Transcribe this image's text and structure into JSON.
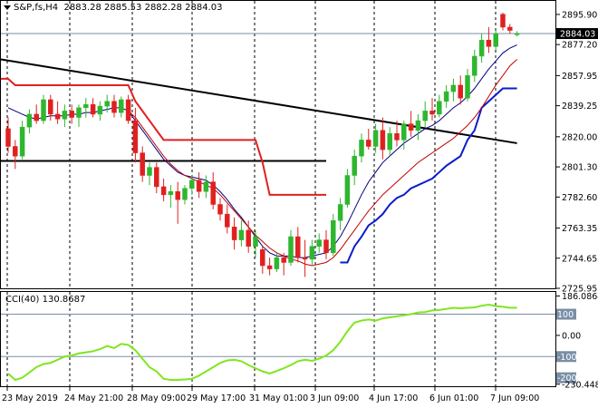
{
  "header": {
    "symbol": "S&P,fs,H4",
    "ohlc": "2883.28 2885.53 2882.28 2884.03",
    "menu_icon": "triangle-down-icon"
  },
  "subwindow": {
    "indicator_label": "CCI(40) 130.8687"
  },
  "colors": {
    "bull": "#2fb62f",
    "bear": "#e02020",
    "thin_ma": "#000080",
    "red_ma": "#c00000",
    "resistance_step": "#e02020",
    "support_step": "#0a1ccc",
    "trendline": "#000000",
    "cci": "#7fe61e",
    "price_marker_bg": "#000000"
  },
  "chart_data": [
    {
      "type": "candlestick",
      "title": "S&P,fs,H4",
      "ylim": [
        2725.95,
        2904.3
      ],
      "y_ticks": [
        "2895.90",
        "2877.20",
        "2857.95",
        "2839.25",
        "2820.00",
        "2801.30",
        "2782.60",
        "2763.35",
        "2744.65",
        "2725.95"
      ],
      "current_price": "2884.03",
      "x_tick_labels": [
        "23 May 2019",
        "24 May 21:00",
        "28 May 09:00",
        "29 May 17:00",
        "31 May 01:00",
        "3 Jun 09:00",
        "4 Jun 17:00",
        "6 Jun 01:00",
        "7 Jun 09:00"
      ],
      "candles": [
        [
          2825,
          2832,
          2810,
          2814
        ],
        [
          2814,
          2818,
          2800,
          2808
        ],
        [
          2808,
          2830,
          2806,
          2826
        ],
        [
          2826,
          2837,
          2822,
          2834
        ],
        [
          2834,
          2840,
          2828,
          2830
        ],
        [
          2830,
          2846,
          2828,
          2843
        ],
        [
          2843,
          2846,
          2830,
          2834
        ],
        [
          2834,
          2842,
          2828,
          2831
        ],
        [
          2831,
          2840,
          2826,
          2836
        ],
        [
          2836,
          2840,
          2828,
          2832
        ],
        [
          2832,
          2840,
          2826,
          2838
        ],
        [
          2838,
          2844,
          2832,
          2840
        ],
        [
          2840,
          2844,
          2832,
          2834
        ],
        [
          2834,
          2842,
          2830,
          2839
        ],
        [
          2839,
          2846,
          2835,
          2842
        ],
        [
          2842,
          2846,
          2832,
          2835
        ],
        [
          2835,
          2845,
          2832,
          2843
        ],
        [
          2843,
          2846,
          2828,
          2830
        ],
        [
          2830,
          2838,
          2804,
          2810
        ],
        [
          2810,
          2814,
          2792,
          2796
        ],
        [
          2796,
          2804,
          2790,
          2801
        ],
        [
          2801,
          2804,
          2785,
          2789
        ],
        [
          2789,
          2794,
          2780,
          2784
        ],
        [
          2784,
          2790,
          2776,
          2786
        ],
        [
          2786,
          2792,
          2766,
          2781
        ],
        [
          2781,
          2790,
          2778,
          2788
        ],
        [
          2788,
          2796,
          2784,
          2793
        ],
        [
          2793,
          2798,
          2782,
          2786
        ],
        [
          2786,
          2796,
          2782,
          2792
        ],
        [
          2792,
          2798,
          2775,
          2778
        ],
        [
          2778,
          2782,
          2768,
          2772
        ],
        [
          2772,
          2778,
          2760,
          2764
        ],
        [
          2764,
          2770,
          2750,
          2756
        ],
        [
          2756,
          2768,
          2752,
          2762
        ],
        [
          2762,
          2768,
          2748,
          2752
        ],
        [
          2752,
          2762,
          2745,
          2758
        ],
        [
          2750,
          2752,
          2735,
          2740
        ],
        [
          2740,
          2745,
          2734,
          2738
        ],
        [
          2738,
          2748,
          2736,
          2745
        ],
        [
          2745,
          2748,
          2734,
          2742
        ],
        [
          2742,
          2762,
          2740,
          2758
        ],
        [
          2758,
          2764,
          2742,
          2745
        ],
        [
          2745,
          2756,
          2733,
          2744
        ],
        [
          2744,
          2756,
          2740,
          2752
        ],
        [
          2752,
          2760,
          2748,
          2756
        ],
        [
          2756,
          2762,
          2744,
          2748
        ],
        [
          2748,
          2772,
          2746,
          2768
        ],
        [
          2768,
          2782,
          2762,
          2778
        ],
        [
          2778,
          2800,
          2776,
          2796
        ],
        [
          2796,
          2812,
          2790,
          2808
        ],
        [
          2808,
          2822,
          2804,
          2818
        ],
        [
          2818,
          2825,
          2812,
          2814
        ],
        [
          2814,
          2828,
          2810,
          2824
        ],
        [
          2824,
          2832,
          2806,
          2812
        ],
        [
          2812,
          2826,
          2808,
          2822
        ],
        [
          2822,
          2830,
          2814,
          2818
        ],
        [
          2818,
          2830,
          2812,
          2828
        ],
        [
          2828,
          2836,
          2820,
          2824
        ],
        [
          2824,
          2834,
          2818,
          2830
        ],
        [
          2830,
          2842,
          2826,
          2836
        ],
        [
          2836,
          2844,
          2830,
          2834
        ],
        [
          2834,
          2846,
          2832,
          2842
        ],
        [
          2842,
          2852,
          2838,
          2848
        ],
        [
          2848,
          2856,
          2842,
          2852
        ],
        [
          2852,
          2858,
          2840,
          2844
        ],
        [
          2844,
          2862,
          2842,
          2858
        ],
        [
          2858,
          2874,
          2854,
          2870
        ],
        [
          2870,
          2884,
          2866,
          2880
        ],
        [
          2880,
          2888,
          2872,
          2876
        ],
        [
          2876,
          2886,
          2874,
          2884
        ],
        [
          2896,
          2897,
          2886,
          2888
        ],
        [
          2888,
          2890,
          2884,
          2886
        ],
        [
          2883.28,
          2885.53,
          2882.28,
          2884.03
        ]
      ],
      "series": [
        {
          "label": "fast-ma",
          "values": [
            2838,
            2836,
            2834,
            2832,
            2831,
            2832,
            2833,
            2833,
            2833,
            2834,
            2834,
            2835,
            2835,
            2836,
            2837,
            2838,
            2838,
            2836,
            2830,
            2824,
            2818,
            2812,
            2806,
            2802,
            2798,
            2796,
            2795,
            2794,
            2793,
            2790,
            2786,
            2781,
            2775,
            2770,
            2764,
            2758,
            2752,
            2748,
            2746,
            2746,
            2746,
            2745,
            2745,
            2746,
            2747,
            2748,
            2752,
            2758,
            2766,
            2775,
            2784,
            2792,
            2798,
            2804,
            2808,
            2812,
            2816,
            2819,
            2822,
            2825,
            2827,
            2830,
            2834,
            2838,
            2841,
            2845,
            2850,
            2856,
            2862,
            2867,
            2872,
            2875,
            2877
          ]
        },
        {
          "label": "slow-ma",
          "values": [
            null,
            null,
            null,
            null,
            null,
            null,
            null,
            null,
            null,
            null,
            null,
            null,
            null,
            null,
            null,
            null,
            null,
            2836,
            2832,
            2826,
            2820,
            2814,
            2808,
            2803,
            2799,
            2796,
            2794,
            2792,
            2790,
            2788,
            2784,
            2779,
            2774,
            2769,
            2764,
            2759,
            2755,
            2751,
            2748,
            2746,
            2744,
            2743,
            2741,
            2740,
            2741,
            2742,
            2745,
            2750,
            2756,
            2762,
            2768,
            2774,
            2779,
            2784,
            2788,
            2792,
            2796,
            2800,
            2804,
            2807,
            2810,
            2813,
            2816,
            2819,
            2823,
            2827,
            2832,
            2838,
            2845,
            2852,
            2858,
            2864,
            2868
          ]
        },
        {
          "label": "resistance-step",
          "values": [
            2856,
            2852,
            2852,
            2852,
            2852,
            2852,
            2852,
            2852,
            2852,
            2852,
            2852,
            2852,
            2852,
            2852,
            2852,
            2852,
            2852,
            2852,
            2842,
            2836,
            2830,
            2824,
            2818,
            2818,
            2818,
            2818,
            2818,
            2818,
            2818,
            2818,
            2818,
            2818,
            2818,
            2818,
            2818,
            2818,
            2804,
            2784,
            2784,
            2784,
            2784,
            2784,
            2784,
            2784,
            2784,
            2784
          ]
        },
        {
          "label": "support-step",
          "values": [
            null,
            null,
            null,
            null,
            null,
            null,
            null,
            null,
            null,
            null,
            null,
            null,
            null,
            null,
            null,
            null,
            null,
            null,
            null,
            null,
            null,
            null,
            null,
            null,
            null,
            null,
            null,
            null,
            null,
            null,
            null,
            null,
            null,
            null,
            null,
            null,
            null,
            null,
            null,
            null,
            null,
            null,
            null,
            null,
            null,
            null,
            null,
            null,
            2742,
            2752,
            2758,
            2765,
            2768,
            2772,
            2778,
            2782,
            2784,
            2788,
            2790,
            2792,
            2794,
            2798,
            2802,
            2805,
            2808,
            2818,
            2824,
            2838,
            2842,
            2846,
            2850,
            2850,
            2850
          ]
        }
      ],
      "trendlines": [
        {
          "label": "descending-trendline",
          "from": [
            0,
            2868
          ],
          "to": [
            72,
            2816
          ]
        },
        {
          "label": "horizontal-support",
          "from": [
            0,
            2805
          ],
          "to": [
            45,
            2805
          ]
        }
      ],
      "grid": true
    },
    {
      "type": "line",
      "title": "CCI(40) 130.8687",
      "ylim": [
        -240,
        205
      ],
      "y_ticks": [
        {
          "v": 186.0864,
          "label": "186.0864"
        },
        {
          "v": 100,
          "label": "100"
        },
        {
          "v": 0,
          "label": "0.00"
        },
        {
          "v": -100,
          "label": "-100"
        },
        {
          "v": -200,
          "label": "-200"
        },
        {
          "v": -230.4486,
          "label": "-230.4486"
        }
      ],
      "levels": [
        100,
        -100
      ],
      "current_value": "130.8687",
      "series": [
        {
          "label": "cci",
          "values": [
            -180,
            -210,
            -200,
            -175,
            -150,
            -135,
            -130,
            -115,
            -100,
            -95,
            -85,
            -80,
            -75,
            -65,
            -50,
            -60,
            -40,
            -45,
            -70,
            -110,
            -150,
            -170,
            -205,
            -210,
            -210,
            -208,
            -205,
            -190,
            -170,
            -150,
            -130,
            -118,
            -115,
            -122,
            -140,
            -155,
            -170,
            -180,
            -168,
            -155,
            -140,
            -122,
            -115,
            -120,
            -110,
            -95,
            -70,
            -30,
            20,
            60,
            70,
            75,
            70,
            80,
            85,
            90,
            95,
            100,
            108,
            110,
            118,
            120,
            125,
            130,
            128,
            130,
            132,
            140,
            145,
            138,
            135,
            130,
            130.8687
          ]
        }
      ]
    }
  ]
}
